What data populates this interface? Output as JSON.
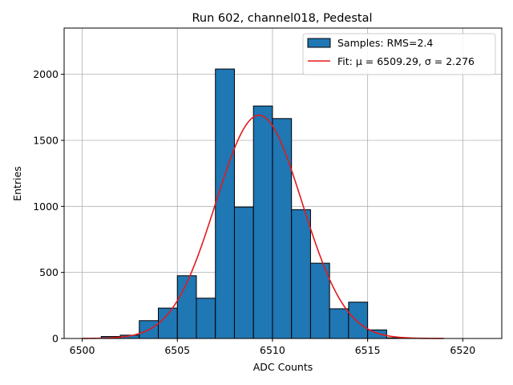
{
  "chart_data": {
    "type": "histogram",
    "title": "Run 602, channel018, Pedestal",
    "xlabel": "ADC Counts",
    "ylabel": "Entries",
    "xlim": [
      6499.05,
      6522.05
    ],
    "ylim": [
      0,
      2350
    ],
    "grid": true,
    "bin_width": 1,
    "x": [
      6501,
      6502,
      6503,
      6504,
      6505,
      6506,
      6507,
      6508,
      6509,
      6510,
      6511,
      6512,
      6513,
      6514,
      6515,
      6516
    ],
    "values": [
      15,
      25,
      135,
      230,
      475,
      305,
      2040,
      995,
      1760,
      1665,
      975,
      570,
      225,
      275,
      65,
      5
    ],
    "x_ticks": [
      6500,
      6505,
      6510,
      6515,
      6520
    ],
    "y_ticks": [
      0,
      500,
      1000,
      1500,
      2000
    ],
    "series": [
      {
        "name": "Samples: RMS=2.4",
        "type": "histogram",
        "color": "#1f77b4"
      },
      {
        "name": "Fit: μ = 6509.29, σ = 2.276",
        "type": "line",
        "color": "#e41a1c",
        "mu": 6509.29,
        "sigma": 2.276,
        "amplitude": 1690,
        "x_range": [
          6500,
          6519
        ]
      }
    ],
    "legend": {
      "position": "top-right",
      "entries": [
        "Samples: RMS=2.4",
        "Fit: μ = 6509.29, σ = 2.276"
      ]
    }
  }
}
